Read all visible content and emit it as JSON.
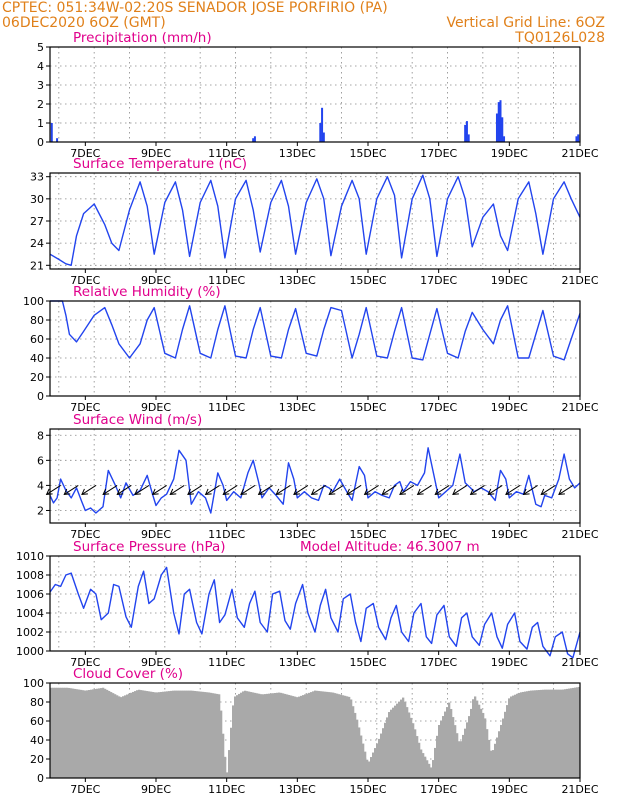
{
  "header": {
    "line1_left": "CPTEC:   051:34W-02:20S   SENADOR JOSE PORFIRIO (PA)",
    "line2_left": "06DEC2020 6OZ (GMT)",
    "line2_right": "Vertical Grid Line: 6OZ",
    "line3_right": "TQ0126L028"
  },
  "colors": {
    "line": "#2244ee",
    "cloud": "#a9a9a9",
    "header": "#e0801a",
    "title": "#e0008c"
  },
  "x_ticks": [
    "7DEC",
    "9DEC",
    "11DEC",
    "13DEC",
    "15DEC",
    "17DEC",
    "19DEC",
    "21DEC"
  ],
  "chart_data": [
    {
      "type": "bar",
      "title": "Precipitation (mm/h)",
      "x_range_days": [
        6.0,
        21.0
      ],
      "ylim": [
        0,
        5
      ],
      "yticks": [
        0,
        1,
        2,
        3,
        4,
        5
      ],
      "grid": true,
      "x": [
        6.05,
        6.2,
        11.75,
        11.8,
        13.65,
        13.7,
        13.75,
        17.75,
        17.8,
        17.85,
        18.65,
        18.7,
        18.75,
        18.8,
        18.85,
        20.9,
        20.95
      ],
      "values": [
        1.0,
        0.2,
        0.2,
        0.3,
        1.0,
        1.8,
        0.5,
        0.9,
        1.1,
        0.4,
        1.5,
        2.1,
        2.2,
        1.3,
        0.3,
        0.3,
        0.4
      ]
    },
    {
      "type": "line",
      "title": "Surface Temperature (nC)",
      "x_range_days": [
        6.0,
        21.0
      ],
      "ylim": [
        20.5,
        33.5
      ],
      "yticks": [
        21,
        24,
        27,
        30,
        33
      ],
      "grid": true,
      "x": [
        6.0,
        6.25,
        6.45,
        6.6,
        6.75,
        6.95,
        7.25,
        7.55,
        7.75,
        7.95,
        8.25,
        8.55,
        8.75,
        8.95,
        9.25,
        9.55,
        9.75,
        9.95,
        10.25,
        10.55,
        10.75,
        10.95,
        11.25,
        11.55,
        11.75,
        11.95,
        12.25,
        12.55,
        12.75,
        12.95,
        13.25,
        13.55,
        13.75,
        13.95,
        14.25,
        14.55,
        14.75,
        14.95,
        15.25,
        15.55,
        15.75,
        15.95,
        16.25,
        16.55,
        16.75,
        16.95,
        17.25,
        17.55,
        17.75,
        17.95,
        18.25,
        18.55,
        18.75,
        18.95,
        19.25,
        19.55,
        19.75,
        19.95,
        20.25,
        20.55,
        20.75,
        21.0
      ],
      "series": [
        {
          "values": [
            22.5,
            21.8,
            21.2,
            21.0,
            25.0,
            28.0,
            29.3,
            26.5,
            24.0,
            23.0,
            28.5,
            32.3,
            29.0,
            22.5,
            29.5,
            32.3,
            28.5,
            22.2,
            29.5,
            32.5,
            29.0,
            22.0,
            30.0,
            32.5,
            28.5,
            22.8,
            29.5,
            32.5,
            29.0,
            22.5,
            29.5,
            32.7,
            30.0,
            22.3,
            29.0,
            32.5,
            30.0,
            22.5,
            30.0,
            33.0,
            30.5,
            22.0,
            30.0,
            33.2,
            30.0,
            22.2,
            30.0,
            33.0,
            30.0,
            23.5,
            27.5,
            29.3,
            25.0,
            23.0,
            30.0,
            32.3,
            28.0,
            22.5,
            30.0,
            32.3,
            30.0,
            27.5
          ]
        }
      ]
    },
    {
      "type": "line",
      "title": "Relative Humidity (%)",
      "x_range_days": [
        6.0,
        21.0
      ],
      "ylim": [
        0,
        100
      ],
      "yticks": [
        0,
        20,
        40,
        60,
        80,
        100
      ],
      "grid": true,
      "x": [
        6.0,
        6.2,
        6.35,
        6.45,
        6.55,
        6.75,
        6.95,
        7.25,
        7.55,
        7.75,
        7.95,
        8.25,
        8.55,
        8.75,
        8.95,
        9.25,
        9.55,
        9.75,
        9.95,
        10.25,
        10.55,
        10.75,
        10.95,
        11.25,
        11.55,
        11.75,
        11.95,
        12.25,
        12.55,
        12.75,
        12.95,
        13.25,
        13.55,
        13.75,
        13.95,
        14.25,
        14.55,
        14.75,
        14.95,
        15.25,
        15.55,
        15.75,
        15.95,
        16.25,
        16.55,
        16.75,
        16.95,
        17.25,
        17.55,
        17.75,
        17.95,
        18.25,
        18.55,
        18.75,
        18.95,
        19.25,
        19.55,
        19.75,
        19.95,
        20.25,
        20.55,
        20.75,
        21.0
      ],
      "series": [
        {
          "values": [
            100,
            100,
            100,
            85,
            65,
            57,
            68,
            85,
            93,
            75,
            55,
            40,
            55,
            80,
            93,
            45,
            40,
            70,
            95,
            45,
            40,
            70,
            95,
            42,
            40,
            70,
            93,
            42,
            40,
            70,
            92,
            45,
            42,
            70,
            93,
            90,
            40,
            65,
            93,
            42,
            40,
            68,
            93,
            40,
            38,
            65,
            92,
            45,
            40,
            68,
            88,
            70,
            55,
            80,
            95,
            40,
            40,
            65,
            90,
            42,
            38,
            60,
            87
          ]
        }
      ]
    },
    {
      "type": "line",
      "title": "Surface Wind (m/s)",
      "x_range_days": [
        6.0,
        21.0
      ],
      "ylim": [
        1,
        8.5
      ],
      "yticks": [
        2,
        4,
        6,
        8
      ],
      "grid": true,
      "x": [
        6.0,
        6.1,
        6.2,
        6.3,
        6.45,
        6.6,
        6.75,
        6.9,
        7.0,
        7.15,
        7.3,
        7.5,
        7.65,
        7.85,
        8.0,
        8.15,
        8.35,
        8.55,
        8.75,
        8.9,
        9.0,
        9.15,
        9.3,
        9.5,
        9.65,
        9.85,
        10.0,
        10.2,
        10.4,
        10.55,
        10.75,
        10.9,
        11.0,
        11.2,
        11.4,
        11.6,
        11.75,
        11.9,
        12.0,
        12.2,
        12.4,
        12.6,
        12.75,
        12.9,
        13.0,
        13.2,
        13.4,
        13.6,
        13.75,
        13.9,
        14.0,
        14.2,
        14.4,
        14.55,
        14.75,
        14.9,
        15.0,
        15.2,
        15.4,
        15.6,
        15.75,
        15.9,
        16.0,
        16.2,
        16.4,
        16.6,
        16.7,
        16.85,
        17.0,
        17.2,
        17.4,
        17.6,
        17.75,
        17.9,
        18.0,
        18.2,
        18.4,
        18.6,
        18.75,
        18.9,
        19.0,
        19.2,
        19.4,
        19.55,
        19.75,
        19.9,
        20.0,
        20.2,
        20.4,
        20.55,
        20.7,
        20.85,
        21.0
      ],
      "series": [
        {
          "values": [
            3.2,
            2.6,
            3.0,
            4.5,
            3.6,
            3.0,
            3.8,
            2.7,
            2.0,
            2.2,
            1.8,
            2.3,
            5.2,
            4.0,
            3.0,
            4.2,
            3.2,
            3.6,
            4.8,
            3.3,
            2.4,
            3.0,
            3.3,
            4.5,
            6.8,
            6.0,
            2.5,
            3.5,
            3.0,
            1.8,
            5.0,
            4.0,
            2.8,
            3.5,
            3.0,
            5.0,
            6.0,
            4.3,
            3.0,
            3.8,
            3.2,
            2.5,
            5.8,
            4.5,
            3.0,
            3.5,
            3.0,
            2.8,
            4.0,
            3.8,
            3.5,
            4.5,
            3.5,
            2.8,
            5.5,
            4.8,
            3.0,
            3.5,
            3.2,
            3.0,
            4.0,
            4.3,
            3.5,
            4.3,
            4.0,
            5.0,
            7.0,
            5.0,
            3.0,
            3.5,
            4.0,
            6.5,
            4.2,
            3.8,
            3.5,
            3.8,
            3.5,
            2.8,
            5.2,
            4.5,
            3.0,
            3.5,
            3.3,
            4.8,
            2.5,
            2.3,
            3.2,
            3.0,
            4.5,
            6.5,
            4.5,
            3.8,
            4.2
          ]
        }
      ],
      "wind_barbs_x": [
        6.3,
        6.8,
        7.3,
        7.9,
        8.3,
        8.8,
        9.3,
        9.8,
        10.3,
        10.8,
        11.3,
        11.8,
        12.3,
        12.8,
        13.3,
        13.8,
        14.3,
        14.8,
        15.3,
        15.8,
        16.3,
        16.8,
        17.3,
        17.8,
        18.3,
        18.8,
        19.3,
        19.8,
        20.3,
        20.8
      ]
    },
    {
      "type": "line",
      "title": "Surface Pressure (hPa)",
      "annotation": "Model Altitude: 46.3007 m",
      "x_range_days": [
        6.0,
        21.0
      ],
      "ylim": [
        1000,
        1010
      ],
      "yticks": [
        1000,
        1002,
        1004,
        1006,
        1008,
        1010
      ],
      "grid": true,
      "x": [
        6.0,
        6.15,
        6.3,
        6.45,
        6.6,
        6.8,
        6.95,
        7.15,
        7.3,
        7.45,
        7.65,
        7.8,
        7.95,
        8.15,
        8.3,
        8.5,
        8.65,
        8.8,
        8.95,
        9.15,
        9.3,
        9.5,
        9.65,
        9.8,
        9.95,
        10.15,
        10.3,
        10.5,
        10.65,
        10.8,
        10.95,
        11.15,
        11.3,
        11.5,
        11.65,
        11.8,
        11.95,
        12.15,
        12.3,
        12.5,
        12.65,
        12.8,
        12.95,
        13.15,
        13.3,
        13.5,
        13.65,
        13.8,
        13.95,
        14.15,
        14.3,
        14.5,
        14.65,
        14.8,
        14.95,
        15.15,
        15.3,
        15.5,
        15.65,
        15.8,
        15.95,
        16.15,
        16.3,
        16.5,
        16.65,
        16.8,
        16.95,
        17.15,
        17.3,
        17.5,
        17.65,
        17.8,
        17.95,
        18.15,
        18.3,
        18.5,
        18.65,
        18.8,
        18.95,
        19.15,
        19.3,
        19.5,
        19.65,
        19.8,
        19.95,
        20.15,
        20.3,
        20.5,
        20.65,
        20.8,
        21.0
      ],
      "series": [
        {
          "values": [
            1006.2,
            1007.0,
            1006.8,
            1008.0,
            1008.2,
            1006.0,
            1004.5,
            1006.5,
            1006.0,
            1003.3,
            1004.0,
            1007.0,
            1006.8,
            1003.6,
            1002.5,
            1006.8,
            1008.4,
            1005.0,
            1005.5,
            1008.0,
            1008.8,
            1004.0,
            1001.8,
            1006.0,
            1006.5,
            1003.0,
            1001.8,
            1006.0,
            1007.5,
            1003.0,
            1003.8,
            1006.5,
            1003.5,
            1002.5,
            1005.0,
            1006.3,
            1003.0,
            1002.0,
            1006.0,
            1006.3,
            1003.2,
            1002.3,
            1005.0,
            1007.0,
            1004.0,
            1002.0,
            1004.8,
            1006.5,
            1003.5,
            1002.0,
            1005.5,
            1006.0,
            1003.0,
            1001.0,
            1004.5,
            1005.0,
            1002.5,
            1001.2,
            1003.5,
            1004.8,
            1002.0,
            1001.0,
            1004.0,
            1005.0,
            1001.5,
            1000.8,
            1003.8,
            1004.8,
            1001.5,
            1000.5,
            1003.5,
            1004.0,
            1001.5,
            1000.6,
            1002.8,
            1004.0,
            1001.5,
            1000.3,
            1002.8,
            1004.0,
            1001.0,
            1000.2,
            1002.5,
            1003.0,
            1000.5,
            999.5,
            1001.5,
            1002.0,
            999.7,
            999.3,
            1002.0
          ]
        }
      ]
    },
    {
      "type": "area",
      "title": "Cloud Cover (%)",
      "x_range_days": [
        6.0,
        21.0
      ],
      "ylim": [
        0,
        100
      ],
      "yticks": [
        0,
        20,
        40,
        60,
        80,
        100
      ],
      "grid": true,
      "x": [
        6.0,
        6.5,
        7.0,
        7.5,
        8.0,
        8.5,
        9.0,
        9.5,
        10.0,
        10.5,
        10.8,
        11.0,
        11.2,
        11.5,
        12.0,
        12.5,
        13.0,
        13.5,
        14.0,
        14.5,
        14.7,
        14.9,
        15.0,
        15.3,
        15.6,
        16.0,
        16.3,
        16.5,
        16.8,
        17.0,
        17.3,
        17.6,
        17.9,
        18.0,
        18.3,
        18.5,
        18.8,
        19.0,
        19.3,
        19.6,
        20.0,
        20.5,
        21.0
      ],
      "series": [
        {
          "values": [
            95,
            95,
            92,
            95,
            85,
            93,
            90,
            92,
            92,
            90,
            88,
            2,
            85,
            92,
            88,
            90,
            85,
            92,
            90,
            85,
            60,
            30,
            15,
            40,
            70,
            85,
            55,
            30,
            10,
            55,
            80,
            35,
            70,
            88,
            65,
            25,
            60,
            85,
            90,
            92,
            93,
            93,
            96
          ]
        }
      ]
    }
  ]
}
